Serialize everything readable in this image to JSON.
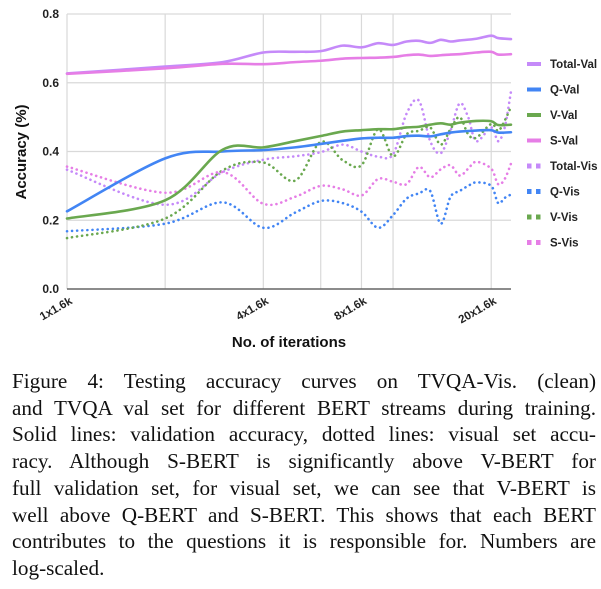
{
  "chart_data": {
    "type": "line",
    "title": "",
    "xlabel": "No. of iterations",
    "ylabel": "Accuracy (%)",
    "xscale": "log2",
    "x_unit": "x1.6k iterations",
    "xlim": [
      1,
      23
    ],
    "ylim": [
      0.0,
      0.8
    ],
    "grid": true,
    "x_gridlines": [
      2,
      4,
      6,
      8,
      10,
      20
    ],
    "x_ticks": [
      {
        "value": 1,
        "label": "1x1.6k"
      },
      {
        "value": 4,
        "label": "4x1.6k"
      },
      {
        "value": 8,
        "label": "8x1.6k"
      },
      {
        "value": 20,
        "label": "20x1.6k"
      }
    ],
    "y_ticks": [
      {
        "value": 0.0,
        "label": "0.0"
      },
      {
        "value": 0.2,
        "label": "0.2"
      },
      {
        "value": 0.4,
        "label": "0.4"
      },
      {
        "value": 0.6,
        "label": "0.6"
      },
      {
        "value": 0.8,
        "label": "0.8"
      }
    ],
    "legend_position": "right",
    "series": [
      {
        "name": "Total-Val",
        "color": "#c58af9",
        "style": "solid",
        "points": [
          [
            1,
            0.627
          ],
          [
            2,
            0.647
          ],
          [
            3,
            0.66
          ],
          [
            4,
            0.688
          ],
          [
            5,
            0.69
          ],
          [
            6,
            0.692
          ],
          [
            7,
            0.708
          ],
          [
            8,
            0.703
          ],
          [
            9,
            0.715
          ],
          [
            10,
            0.71
          ],
          [
            11,
            0.72
          ],
          [
            12,
            0.722
          ],
          [
            13,
            0.716
          ],
          [
            14,
            0.725
          ],
          [
            15,
            0.72
          ],
          [
            16,
            0.723
          ],
          [
            18,
            0.728
          ],
          [
            20,
            0.737
          ],
          [
            21,
            0.73
          ],
          [
            23,
            0.727
          ]
        ]
      },
      {
        "name": "Q-Val",
        "color": "#4285f4",
        "style": "solid",
        "points": [
          [
            1,
            0.226
          ],
          [
            2,
            0.38
          ],
          [
            3,
            0.4
          ],
          [
            4,
            0.404
          ],
          [
            5,
            0.412
          ],
          [
            6,
            0.422
          ],
          [
            7,
            0.431
          ],
          [
            8,
            0.438
          ],
          [
            9,
            0.44
          ],
          [
            10,
            0.44
          ],
          [
            11,
            0.445
          ],
          [
            12,
            0.446
          ],
          [
            13,
            0.444
          ],
          [
            14,
            0.45
          ],
          [
            15,
            0.455
          ],
          [
            16,
            0.458
          ],
          [
            18,
            0.461
          ],
          [
            20,
            0.462
          ],
          [
            21,
            0.455
          ],
          [
            23,
            0.456
          ]
        ]
      },
      {
        "name": "V-Val",
        "color": "#6aa84f",
        "style": "solid",
        "points": [
          [
            1,
            0.205
          ],
          [
            2,
            0.258
          ],
          [
            3,
            0.405
          ],
          [
            4,
            0.412
          ],
          [
            5,
            0.43
          ],
          [
            6,
            0.445
          ],
          [
            7,
            0.458
          ],
          [
            8,
            0.462
          ],
          [
            9,
            0.465
          ],
          [
            10,
            0.465
          ],
          [
            11,
            0.47
          ],
          [
            12,
            0.472
          ],
          [
            13,
            0.478
          ],
          [
            14,
            0.482
          ],
          [
            15,
            0.478
          ],
          [
            16,
            0.484
          ],
          [
            18,
            0.489
          ],
          [
            20,
            0.488
          ],
          [
            21,
            0.477
          ],
          [
            23,
            0.478
          ]
        ]
      },
      {
        "name": "S-Val",
        "color": "#e67ee6",
        "style": "solid",
        "points": [
          [
            1,
            0.626
          ],
          [
            2,
            0.642
          ],
          [
            3,
            0.655
          ],
          [
            4,
            0.654
          ],
          [
            5,
            0.66
          ],
          [
            6,
            0.664
          ],
          [
            7,
            0.67
          ],
          [
            8,
            0.672
          ],
          [
            9,
            0.673
          ],
          [
            10,
            0.675
          ],
          [
            11,
            0.68
          ],
          [
            12,
            0.682
          ],
          [
            13,
            0.678
          ],
          [
            14,
            0.68
          ],
          [
            15,
            0.682
          ],
          [
            16,
            0.683
          ],
          [
            18,
            0.688
          ],
          [
            20,
            0.69
          ],
          [
            21,
            0.682
          ],
          [
            23,
            0.683
          ]
        ]
      },
      {
        "name": "Total-Vis",
        "color": "#c58af9",
        "style": "dotted",
        "points": [
          [
            1,
            0.347
          ],
          [
            2,
            0.245
          ],
          [
            3,
            0.34
          ],
          [
            4,
            0.376
          ],
          [
            5,
            0.386
          ],
          [
            6,
            0.398
          ],
          [
            7,
            0.42
          ],
          [
            8,
            0.4
          ],
          [
            9,
            0.385
          ],
          [
            10,
            0.392
          ],
          [
            11,
            0.51
          ],
          [
            12,
            0.548
          ],
          [
            13,
            0.43
          ],
          [
            14,
            0.395
          ],
          [
            15,
            0.46
          ],
          [
            16,
            0.54
          ],
          [
            17,
            0.5
          ],
          [
            18,
            0.43
          ],
          [
            20,
            0.47
          ],
          [
            21,
            0.43
          ],
          [
            22,
            0.47
          ],
          [
            23,
            0.575
          ]
        ]
      },
      {
        "name": "Q-Vis",
        "color": "#4285f4",
        "style": "dotted",
        "points": [
          [
            1,
            0.168
          ],
          [
            2,
            0.19
          ],
          [
            3,
            0.252
          ],
          [
            4,
            0.178
          ],
          [
            5,
            0.222
          ],
          [
            6,
            0.256
          ],
          [
            7,
            0.25
          ],
          [
            8,
            0.225
          ],
          [
            9,
            0.178
          ],
          [
            10,
            0.215
          ],
          [
            11,
            0.263
          ],
          [
            12,
            0.278
          ],
          [
            13,
            0.285
          ],
          [
            14,
            0.19
          ],
          [
            15,
            0.268
          ],
          [
            16,
            0.285
          ],
          [
            17,
            0.3
          ],
          [
            18,
            0.31
          ],
          [
            20,
            0.3
          ],
          [
            21,
            0.25
          ],
          [
            22,
            0.265
          ],
          [
            23,
            0.275
          ]
        ]
      },
      {
        "name": "V-Vis",
        "color": "#6aa84f",
        "style": "dotted",
        "points": [
          [
            1,
            0.148
          ],
          [
            2,
            0.205
          ],
          [
            3,
            0.345
          ],
          [
            4,
            0.368
          ],
          [
            5,
            0.315
          ],
          [
            6,
            0.428
          ],
          [
            7,
            0.375
          ],
          [
            8,
            0.36
          ],
          [
            9,
            0.465
          ],
          [
            10,
            0.386
          ],
          [
            11,
            0.45
          ],
          [
            12,
            0.46
          ],
          [
            13,
            0.47
          ],
          [
            14,
            0.42
          ],
          [
            15,
            0.465
          ],
          [
            16,
            0.5
          ],
          [
            17,
            0.45
          ],
          [
            18,
            0.44
          ],
          [
            20,
            0.48
          ],
          [
            21,
            0.46
          ],
          [
            22,
            0.49
          ],
          [
            23,
            0.53
          ]
        ]
      },
      {
        "name": "S-Vis",
        "color": "#e67ee6",
        "style": "dotted",
        "points": [
          [
            1,
            0.356
          ],
          [
            2,
            0.28
          ],
          [
            3,
            0.34
          ],
          [
            4,
            0.248
          ],
          [
            5,
            0.268
          ],
          [
            6,
            0.3
          ],
          [
            7,
            0.29
          ],
          [
            8,
            0.272
          ],
          [
            9,
            0.32
          ],
          [
            10,
            0.312
          ],
          [
            11,
            0.305
          ],
          [
            12,
            0.355
          ],
          [
            13,
            0.325
          ],
          [
            14,
            0.348
          ],
          [
            15,
            0.36
          ],
          [
            16,
            0.33
          ],
          [
            17,
            0.35
          ],
          [
            18,
            0.37
          ],
          [
            20,
            0.35
          ],
          [
            21,
            0.305
          ],
          [
            22,
            0.32
          ],
          [
            23,
            0.365
          ]
        ]
      }
    ]
  },
  "caption": {
    "lines": [
      "Figure 4:  Testing accuracy curves on TVQA-Vis.  (clean)",
      "and TVQA val set for different BERT streams during training.",
      "Solid lines: validation accuracy, dotted lines: visual set accu-",
      "racy.  Although S-BERT is significantly above V-BERT for",
      "full validation set, for visual set, we can see that V-BERT is",
      "well above Q-BERT and S-BERT. This shows that each BERT",
      "contributes to the questions it is responsible for. Numbers are",
      "log-scaled."
    ]
  }
}
